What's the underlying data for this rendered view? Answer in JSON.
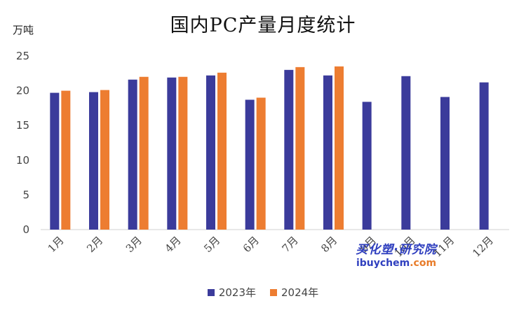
{
  "chart_data": {
    "type": "bar",
    "title": "国内PC产量月度统计",
    "y_unit": "万吨",
    "categories": [
      "1月",
      "2月",
      "3月",
      "4月",
      "5月",
      "6月",
      "7月",
      "8月",
      "9月",
      "10月",
      "11月",
      "12月"
    ],
    "ylim": [
      0,
      25
    ],
    "yticks": [
      0,
      5,
      10,
      15,
      20,
      25
    ],
    "grid": false,
    "legend_position": "bottom",
    "series": [
      {
        "name": "2023年",
        "color": "#3b3b9b",
        "values": [
          19.7,
          19.8,
          21.6,
          21.9,
          22.2,
          18.7,
          23.0,
          22.2,
          18.4,
          22.1,
          19.1,
          21.2
        ]
      },
      {
        "name": "2024年",
        "color": "#ed7d31",
        "values": [
          20.0,
          20.1,
          22.0,
          22.0,
          22.6,
          19.0,
          23.4,
          23.5,
          null,
          null,
          null,
          null
        ]
      }
    ]
  },
  "watermark": {
    "line1": "买化塑·研究院",
    "line2_main": "ibuychem",
    "line2_accent": ".com"
  }
}
